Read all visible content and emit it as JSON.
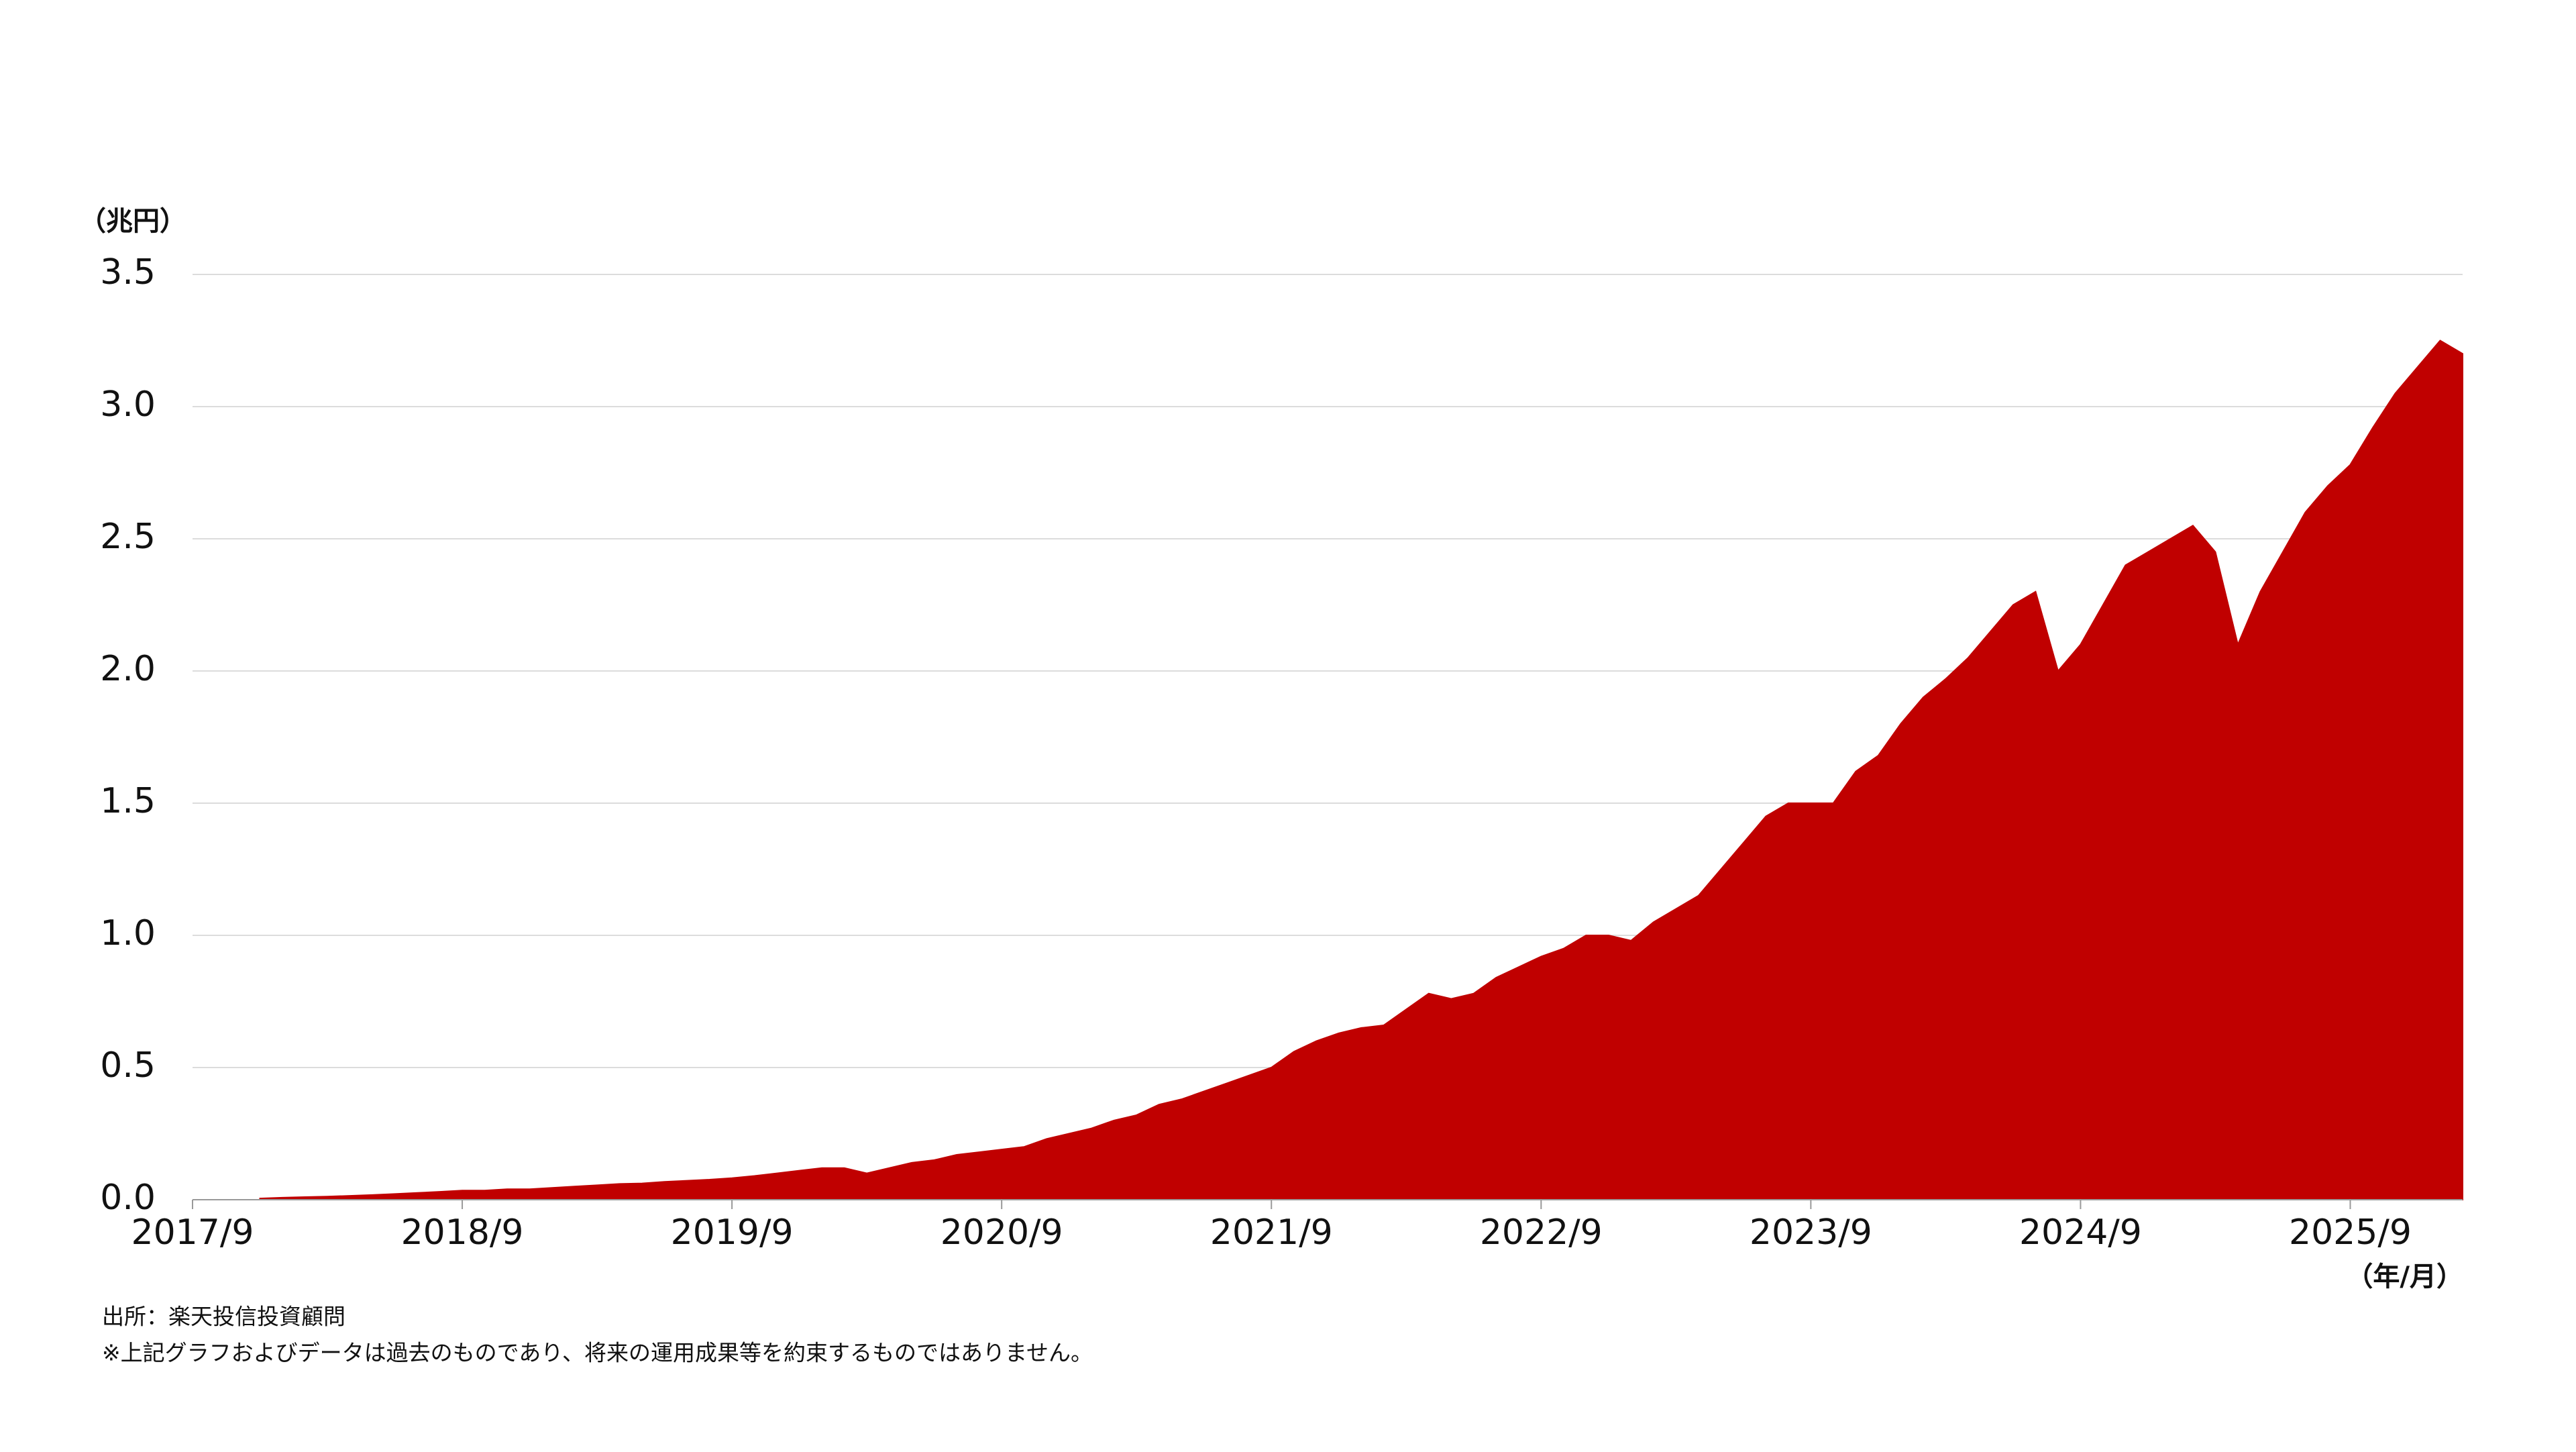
{
  "chart_data": {
    "type": "area",
    "y_label": "（兆円）",
    "x_label": "（年/月）",
    "source": "出所：楽天投信投資顧問",
    "note": "※上記グラフおよびデータは過去のものであり、将来の運用成果等を約束するものではありません。",
    "color": "#c00000",
    "grid": true,
    "ylim": [
      0,
      3.5
    ],
    "yticks": [
      {
        "value": 0,
        "label": "0.0"
      },
      0.5,
      {
        "value": 1,
        "label": "1.0"
      },
      1.5,
      {
        "value": 2,
        "label": "2.0"
      },
      2.5,
      {
        "value": 3,
        "label": "3.0"
      },
      3.5
    ],
    "xticks": [
      "2017/9",
      "2018/9",
      "2019/9",
      "2020/9",
      "2021/9",
      "2022/9",
      "2023/9",
      "2024/9",
      "2025/9"
    ],
    "x": [
      "2017/9",
      "2017/10",
      "2017/11",
      "2017/12",
      "2018/1",
      "2018/2",
      "2018/3",
      "2018/4",
      "2018/5",
      "2018/6",
      "2018/7",
      "2018/8",
      "2018/9",
      "2018/10",
      "2018/11",
      "2018/12",
      "2019/1",
      "2019/2",
      "2019/3",
      "2019/4",
      "2019/5",
      "2019/6",
      "2019/7",
      "2019/8",
      "2019/9",
      "2019/10",
      "2019/11",
      "2019/12",
      "2020/1",
      "2020/2",
      "2020/3",
      "2020/4",
      "2020/5",
      "2020/6",
      "2020/7",
      "2020/8",
      "2020/9",
      "2020/10",
      "2020/11",
      "2020/12",
      "2021/1",
      "2021/2",
      "2021/3",
      "2021/4",
      "2021/5",
      "2021/6",
      "2021/7",
      "2021/8",
      "2021/9",
      "2021/10",
      "2021/11",
      "2021/12",
      "2022/1",
      "2022/2",
      "2022/3",
      "2022/4",
      "2022/5",
      "2022/6",
      "2022/7",
      "2022/8",
      "2022/9",
      "2022/10",
      "2022/11",
      "2022/12",
      "2023/1",
      "2023/2",
      "2023/3",
      "2023/4",
      "2023/5",
      "2023/6",
      "2023/7",
      "2023/8",
      "2023/9",
      "2023/10",
      "2023/11",
      "2023/12",
      "2024/1",
      "2024/2",
      "2024/3",
      "2024/4",
      "2024/5",
      "2024/6",
      "2024/7",
      "2024/8",
      "2024/9",
      "2024/10",
      "2024/11",
      "2024/12",
      "2025/1",
      "2025/2",
      "2025/3",
      "2025/4",
      "2025/5",
      "2025/6",
      "2025/7",
      "2025/8",
      "2025/9",
      "2025/10",
      "2025/11",
      "2025/12",
      "2026/1",
      "2026/2"
    ],
    "values": [
      null,
      null,
      null,
      0.005,
      0.008,
      0.01,
      0.012,
      0.015,
      0.018,
      0.022,
      0.026,
      0.03,
      0.035,
      0.035,
      0.04,
      0.04,
      0.045,
      0.05,
      0.055,
      0.06,
      0.062,
      0.068,
      0.072,
      0.076,
      0.082,
      0.09,
      0.1,
      0.11,
      0.12,
      0.12,
      0.1,
      0.12,
      0.14,
      0.15,
      0.17,
      0.18,
      0.19,
      0.2,
      0.23,
      0.25,
      0.27,
      0.3,
      0.32,
      0.36,
      0.38,
      0.41,
      0.44,
      0.47,
      0.5,
      0.56,
      0.6,
      0.63,
      0.65,
      0.66,
      0.72,
      0.78,
      0.76,
      0.78,
      0.84,
      0.88,
      0.92,
      0.95,
      1.0,
      1.0,
      0.98,
      1.05,
      1.1,
      1.15,
      1.25,
      1.35,
      1.45,
      1.5,
      1.5,
      1.5,
      1.62,
      1.68,
      1.8,
      1.9,
      1.97,
      2.05,
      2.15,
      2.25,
      2.3,
      2.0,
      2.1,
      2.25,
      2.4,
      2.45,
      2.5,
      2.55,
      2.45,
      2.1,
      2.3,
      2.45,
      2.6,
      2.7,
      2.78,
      2.92,
      3.05,
      3.15,
      3.25,
      3.2
    ]
  }
}
